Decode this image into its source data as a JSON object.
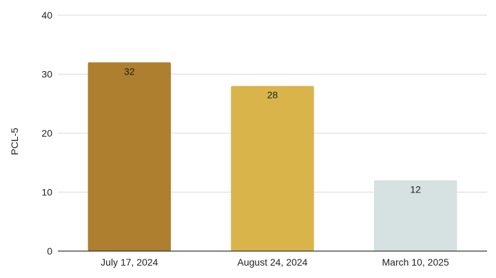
{
  "chart_data": {
    "type": "bar",
    "title": "",
    "xlabel": "",
    "ylabel": "PCL-5",
    "categories": [
      "July 17, 2024",
      "August 24, 2024",
      "March 10, 2025"
    ],
    "values": [
      32,
      28,
      12
    ],
    "data_labels": [
      "32",
      "28",
      "12"
    ],
    "colors": [
      "#ad7f2e",
      "#d8b44b",
      "#d6e1e1"
    ],
    "ylim": [
      0,
      40
    ],
    "yticks": [
      0,
      10,
      20,
      30,
      40
    ],
    "ytick_labels": [
      "0",
      "10",
      "20",
      "30",
      "40"
    ],
    "grid": true,
    "legend": "none"
  }
}
